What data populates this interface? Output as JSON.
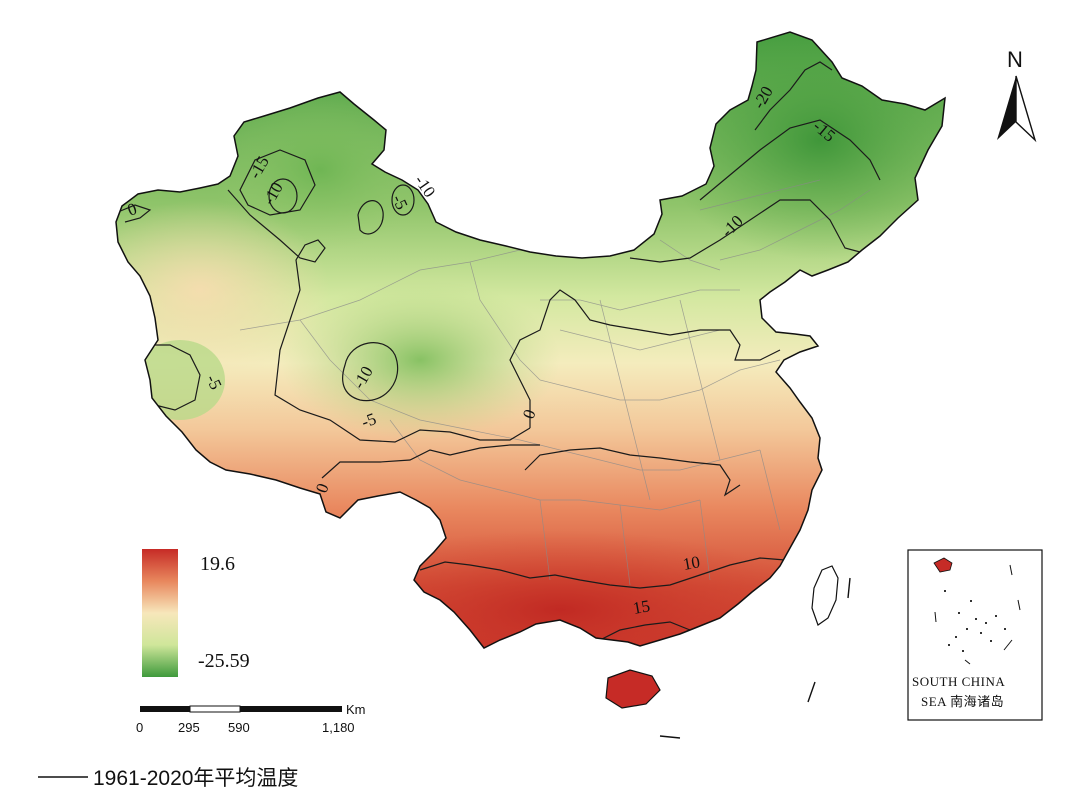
{
  "legend": {
    "max_value": "19.6",
    "min_value": "-25.59",
    "colors": [
      "#c62b26",
      "#e8875d",
      "#f7e7bb",
      "#cfe69a",
      "#3f9a3c"
    ]
  },
  "contour_labels": [
    "-20",
    "-15",
    "-15",
    "-10",
    "-10",
    "-10",
    "-10",
    "-5",
    "-5",
    "-5",
    "0",
    "0",
    "0",
    "10",
    "15"
  ],
  "scale_bar": {
    "unit": "Km",
    "ticks": [
      "0",
      "295",
      "590",
      "1,180"
    ]
  },
  "north_arrow": {
    "label": "N",
    "icon": "north-arrow-icon"
  },
  "inset": {
    "label_line1": "SOUTH CHINA",
    "label_line2": "SEA 南海诸岛"
  },
  "caption": {
    "text": "1961-2020年平均温度"
  }
}
